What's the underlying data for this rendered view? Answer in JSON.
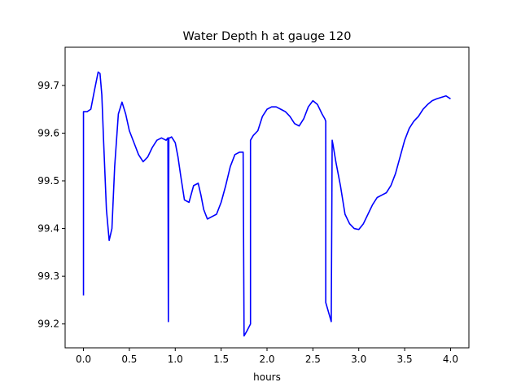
{
  "chart_data": {
    "type": "line",
    "title": "Water Depth h at gauge 120",
    "xlabel": "hours",
    "ylabel": "",
    "xlim": [
      -0.2,
      4.2
    ],
    "ylim": [
      99.15,
      99.78
    ],
    "xticks": [
      0.0,
      0.5,
      1.0,
      1.5,
      2.0,
      2.5,
      3.0,
      3.5,
      4.0
    ],
    "xtick_labels": [
      "0.0",
      "0.5",
      "1.0",
      "1.5",
      "2.0",
      "2.5",
      "3.0",
      "3.5",
      "4.0"
    ],
    "yticks": [
      99.2,
      99.3,
      99.4,
      99.5,
      99.6,
      99.7
    ],
    "ytick_labels": [
      "99.2",
      "99.3",
      "99.4",
      "99.5",
      "99.6",
      "99.7"
    ],
    "grid": false,
    "series": [
      {
        "color": "#0000ff",
        "x": [
          0.0,
          0.0,
          0.04,
          0.08,
          0.12,
          0.16,
          0.18,
          0.2,
          0.22,
          0.25,
          0.28,
          0.31,
          0.34,
          0.38,
          0.42,
          0.46,
          0.5,
          0.55,
          0.6,
          0.65,
          0.7,
          0.75,
          0.8,
          0.85,
          0.9,
          0.92,
          0.925,
          0.93,
          0.94,
          0.96,
          1.0,
          1.03,
          1.06,
          1.1,
          1.15,
          1.2,
          1.25,
          1.28,
          1.31,
          1.35,
          1.4,
          1.45,
          1.5,
          1.55,
          1.6,
          1.65,
          1.7,
          1.74,
          1.75,
          1.75,
          1.78,
          1.82,
          1.82,
          1.85,
          1.9,
          1.95,
          2.0,
          2.05,
          2.1,
          2.15,
          2.2,
          2.25,
          2.3,
          2.35,
          2.4,
          2.45,
          2.5,
          2.55,
          2.6,
          2.63,
          2.64,
          2.64,
          2.7,
          2.71,
          2.72,
          2.75,
          2.8,
          2.85,
          2.9,
          2.95,
          3.0,
          3.05,
          3.1,
          3.15,
          3.2,
          3.25,
          3.3,
          3.35,
          3.4,
          3.45,
          3.5,
          3.55,
          3.6,
          3.65,
          3.7,
          3.75,
          3.8,
          3.85,
          3.9,
          3.95,
          4.0
        ],
        "y": [
          99.26,
          99.645,
          99.645,
          99.65,
          99.69,
          99.728,
          99.725,
          99.68,
          99.58,
          99.44,
          99.375,
          99.4,
          99.53,
          99.64,
          99.665,
          99.64,
          99.605,
          99.58,
          99.555,
          99.54,
          99.55,
          99.57,
          99.585,
          99.59,
          99.585,
          99.59,
          99.205,
          99.59,
          99.59,
          99.592,
          99.58,
          99.55,
          99.51,
          99.46,
          99.455,
          99.49,
          99.495,
          99.47,
          99.44,
          99.42,
          99.425,
          99.43,
          99.455,
          99.49,
          99.53,
          99.555,
          99.56,
          99.56,
          99.175,
          99.175,
          99.185,
          99.2,
          99.585,
          99.595,
          99.605,
          99.635,
          99.65,
          99.655,
          99.655,
          99.65,
          99.645,
          99.635,
          99.62,
          99.615,
          99.63,
          99.655,
          99.668,
          99.66,
          99.64,
          99.63,
          99.625,
          99.245,
          99.205,
          99.585,
          99.575,
          99.54,
          99.49,
          99.43,
          99.41,
          99.4,
          99.398,
          99.41,
          99.43,
          99.45,
          99.465,
          99.47,
          99.475,
          99.49,
          99.515,
          99.55,
          99.585,
          99.61,
          99.625,
          99.635,
          99.65,
          99.66,
          99.668,
          99.672,
          99.675,
          99.678,
          99.672
        ]
      }
    ]
  }
}
